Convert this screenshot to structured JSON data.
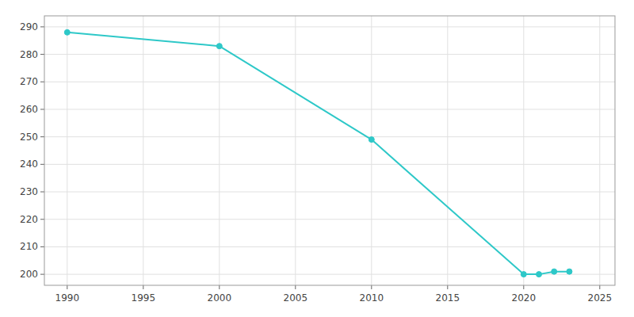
{
  "chart_data": {
    "type": "line",
    "x": [
      1990,
      2000,
      2010,
      2020,
      2021,
      2022,
      2023
    ],
    "values": [
      288,
      283,
      249,
      200,
      200,
      201,
      201
    ],
    "color": "#2ec8c8",
    "marker": "circle",
    "xlim": [
      1988.5,
      2026
    ],
    "ylim": [
      196,
      294
    ],
    "xticks": [
      1990,
      1995,
      2000,
      2005,
      2010,
      2015,
      2020,
      2025
    ],
    "yticks": [
      200,
      210,
      220,
      230,
      240,
      250,
      260,
      270,
      280,
      290
    ],
    "grid": true
  }
}
